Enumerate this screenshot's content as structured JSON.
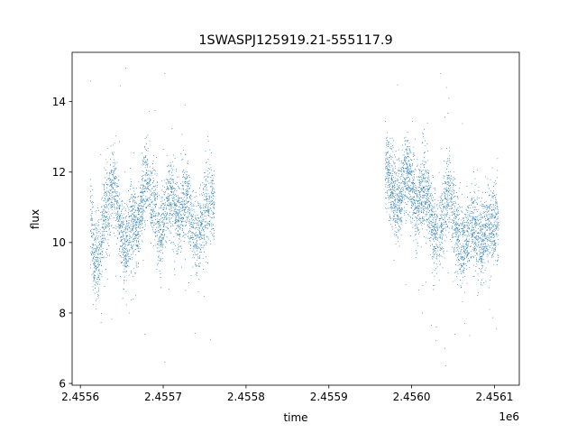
{
  "chart_data": {
    "type": "scatter",
    "title": "1SWASPJ125919.21-555117.9",
    "xlabel": "time",
    "ylabel": "flux",
    "x_offset_label": "1e6",
    "x_scale_factor": 1000000,
    "xlim": [
      2455590,
      2456130
    ],
    "ylim": [
      5.95,
      15.4
    ],
    "xticks": [
      2455600,
      2455700,
      2455800,
      2455900,
      2456000,
      2456100
    ],
    "xtick_labels": [
      "2.4556",
      "2.4557",
      "2.4558",
      "2.4559",
      "2.4560",
      "2.4561"
    ],
    "yticks": [
      6,
      8,
      10,
      12,
      14
    ],
    "ytick_labels": [
      "6",
      "8",
      "10",
      "12",
      "14"
    ],
    "grid": false,
    "marker_color": "#1f77b4",
    "series": [
      {
        "segments": [
          {
            "x_start": 2455612,
            "x_end": 2455682,
            "centers": [
              [
                2455612,
                10.8
              ],
              [
                2455616,
                9.6
              ],
              [
                2455621,
                9.4
              ],
              [
                2455626,
                10.2
              ],
              [
                2455631,
                11.0
              ],
              [
                2455636,
                11.4
              ],
              [
                2455640,
                11.8
              ],
              [
                2455644,
                11.3
              ],
              [
                2455648,
                10.5
              ],
              [
                2455652,
                9.9
              ],
              [
                2455656,
                10.0
              ],
              [
                2455660,
                10.4
              ],
              [
                2455664,
                10.6
              ],
              [
                2455668,
                10.3
              ],
              [
                2455672,
                10.8
              ],
              [
                2455676,
                11.5
              ],
              [
                2455680,
                11.8
              ]
            ]
          },
          {
            "x_start": 2455683,
            "x_end": 2455762,
            "centers": [
              [
                2455683,
                11.6
              ],
              [
                2455688,
                11.2
              ],
              [
                2455692,
                10.6
              ],
              [
                2455697,
                10.3
              ],
              [
                2455702,
                10.9
              ],
              [
                2455707,
                11.3
              ],
              [
                2455712,
                11.2
              ],
              [
                2455716,
                10.7
              ],
              [
                2455720,
                10.6
              ],
              [
                2455724,
                11.1
              ],
              [
                2455728,
                11.4
              ],
              [
                2455731,
                11.0
              ],
              [
                2455735,
                10.4
              ],
              [
                2455739,
                10.1
              ],
              [
                2455744,
                10.3
              ],
              [
                2455749,
                10.8
              ],
              [
                2455754,
                11.1
              ],
              [
                2455758,
                11.3
              ],
              [
                2455762,
                11.1
              ]
            ]
          },
          {
            "x_start": 2455968,
            "x_end": 2456032,
            "centers": [
              [
                2455968,
                12.2
              ],
              [
                2455972,
                11.9
              ],
              [
                2455977,
                11.5
              ],
              [
                2455982,
                11.1
              ],
              [
                2455987,
                11.3
              ],
              [
                2455991,
                11.8
              ],
              [
                2455995,
                12.1
              ],
              [
                2455999,
                11.6
              ],
              [
                2456003,
                11.3
              ],
              [
                2456007,
                11.0
              ],
              [
                2456011,
                11.4
              ],
              [
                2456015,
                11.6
              ],
              [
                2456019,
                11.3
              ],
              [
                2456023,
                10.8
              ],
              [
                2456027,
                10.4
              ],
              [
                2456031,
                10.2
              ]
            ]
          },
          {
            "x_start": 2456033,
            "x_end": 2456105,
            "centers": [
              [
                2456033,
                10.3
              ],
              [
                2456037,
                10.6
              ],
              [
                2456041,
                11.2
              ],
              [
                2456045,
                11.5
              ],
              [
                2456049,
                11.0
              ],
              [
                2456053,
                10.5
              ],
              [
                2456057,
                10.0
              ],
              [
                2456061,
                9.8
              ],
              [
                2456065,
                10.0
              ],
              [
                2456069,
                10.3
              ],
              [
                2456073,
                10.6
              ],
              [
                2456077,
                10.4
              ],
              [
                2456081,
                10.2
              ],
              [
                2456085,
                10.0
              ],
              [
                2456089,
                10.3
              ],
              [
                2456093,
                10.5
              ],
              [
                2456097,
                10.3
              ],
              [
                2456101,
                10.6
              ],
              [
                2456105,
                10.5
              ]
            ]
          }
        ],
        "scatter_width": 0.9,
        "points_per_segment": 1500,
        "outliers": [
          [
            2455655,
            14.95
          ],
          [
            2455702,
            14.8
          ],
          [
            2455648,
            14.45
          ],
          [
            2455659,
            8.0
          ],
          [
            2455664,
            8.4
          ],
          [
            2455678,
            7.4
          ],
          [
            2455702,
            6.6
          ],
          [
            2455757,
            7.25
          ],
          [
            2456035,
            14.8
          ],
          [
            2456042,
            14.4
          ],
          [
            2456045,
            14.1
          ],
          [
            2456030,
            7.6
          ],
          [
            2456041,
            6.5
          ],
          [
            2456040,
            7.0
          ],
          [
            2456052,
            7.4
          ],
          [
            2456064,
            7.7
          ],
          [
            2455993,
            8.8
          ],
          [
            2456013,
            8.0
          ],
          [
            2456094,
            8.1
          ]
        ]
      }
    ]
  }
}
